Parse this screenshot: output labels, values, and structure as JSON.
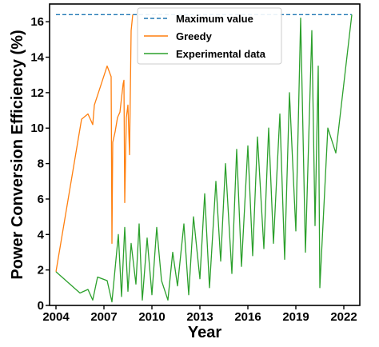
{
  "chart_data": {
    "type": "line",
    "title": "",
    "xlabel": "Year",
    "ylabel": "Power Conversion Efficiency (%)",
    "xlim": [
      2003.6,
      2023.0
    ],
    "ylim": [
      0,
      17
    ],
    "x_ticks": [
      2004,
      2007,
      2010,
      2013,
      2016,
      2019,
      2022
    ],
    "y_ticks": [
      0,
      2,
      4,
      6,
      8,
      10,
      12,
      14,
      16
    ],
    "grid": false,
    "legend_position": "top-center",
    "series": [
      {
        "name": "Maximum value",
        "style": "dashed",
        "color": "#1f77b4",
        "x": [
          2004.0,
          2022.5
        ],
        "y": [
          16.4,
          16.4
        ]
      },
      {
        "name": "Greedy",
        "style": "solid",
        "color": "#ff7f0e",
        "x": [
          2004.0,
          2005.6,
          2006.0,
          2006.3,
          2006.4,
          2007.2,
          2007.45,
          2007.5,
          2007.55,
          2007.7,
          2007.85,
          2008.0,
          2008.2,
          2008.25,
          2008.3,
          2008.4,
          2008.5,
          2008.6,
          2008.7,
          2008.8
        ],
        "y": [
          1.9,
          10.5,
          10.8,
          10.2,
          11.3,
          13.5,
          12.9,
          3.5,
          9.2,
          9.8,
          10.6,
          10.9,
          12.5,
          12.7,
          5.8,
          10.6,
          11.3,
          8.5,
          15.5,
          16.4
        ]
      },
      {
        "name": "Experimental data",
        "style": "solid",
        "color": "#2ca02c",
        "x": [
          2004.0,
          2005.5,
          2006.0,
          2006.3,
          2006.6,
          2007.2,
          2007.5,
          2007.9,
          2008.1,
          2008.3,
          2008.5,
          2008.7,
          2009.0,
          2009.2,
          2009.4,
          2009.7,
          2010.0,
          2010.3,
          2010.6,
          2011.0,
          2011.3,
          2011.6,
          2012.0,
          2012.3,
          2012.6,
          2013.0,
          2013.3,
          2013.6,
          2014.0,
          2014.3,
          2014.6,
          2015.0,
          2015.3,
          2015.6,
          2016.0,
          2016.3,
          2016.6,
          2017.0,
          2017.3,
          2017.6,
          2018.0,
          2018.3,
          2018.6,
          2019.0,
          2019.3,
          2019.6,
          2020.0,
          2020.2,
          2020.4,
          2020.5,
          2021.0,
          2021.5,
          2022.5
        ],
        "y": [
          1.9,
          0.7,
          0.9,
          0.3,
          1.6,
          1.4,
          0.2,
          4.0,
          0.5,
          4.4,
          0.8,
          3.5,
          1.2,
          4.6,
          0.3,
          3.8,
          0.6,
          4.4,
          1.4,
          0.3,
          3.0,
          1.1,
          4.6,
          0.6,
          5.0,
          1.5,
          6.3,
          1.0,
          7.0,
          2.5,
          8.0,
          1.8,
          8.8,
          2.2,
          9.0,
          2.8,
          9.5,
          3.2,
          10.0,
          3.5,
          10.8,
          2.6,
          12.0,
          4.2,
          16.2,
          3.0,
          15.5,
          4.5,
          13.5,
          1.0,
          10.0,
          8.6,
          16.4
        ]
      }
    ]
  }
}
